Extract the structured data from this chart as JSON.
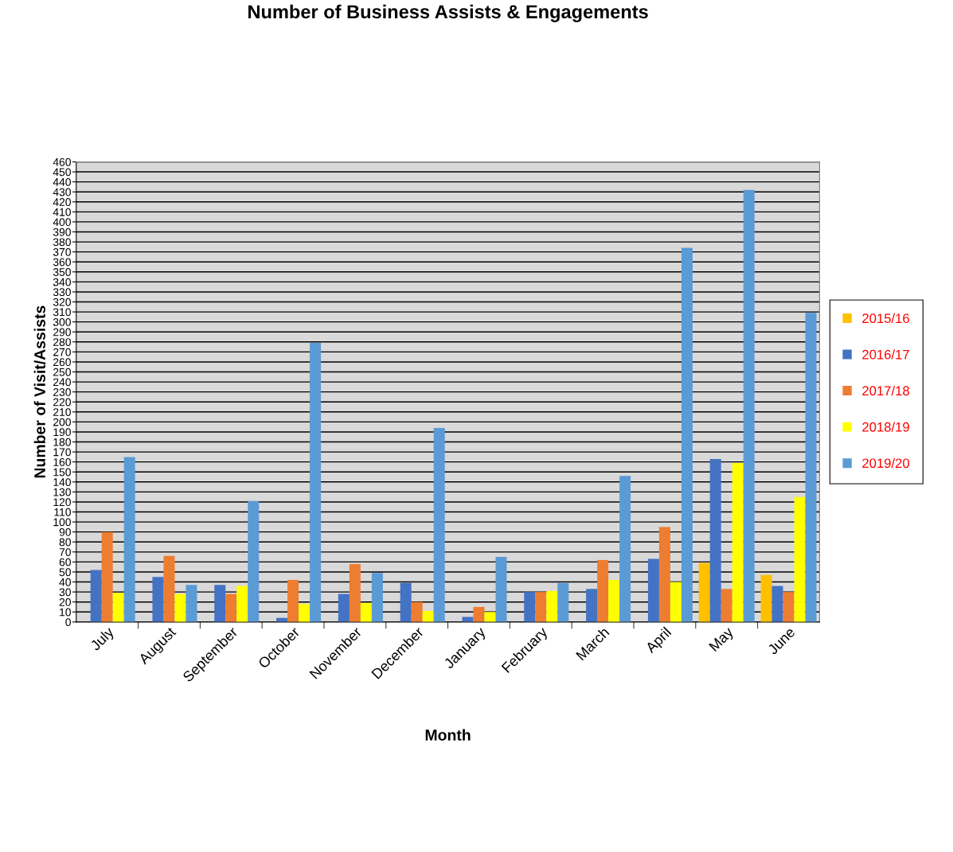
{
  "chart_data": {
    "type": "bar",
    "title": "Number of Business Assists & Engagements",
    "xlabel": "Month",
    "ylabel": "Number of Visit/Assists",
    "categories": [
      "July",
      "August",
      "September",
      "October",
      "November",
      "December",
      "January",
      "February",
      "March",
      "April",
      "May",
      "June"
    ],
    "series": [
      {
        "name": "2015/16",
        "color": "#ffc000",
        "values": [
          null,
          null,
          null,
          null,
          null,
          null,
          null,
          null,
          null,
          null,
          59,
          47
        ]
      },
      {
        "name": "2016/17",
        "color": "#4472c4",
        "values": [
          52,
          45,
          37,
          4,
          28,
          39,
          5,
          30,
          33,
          63,
          163,
          36
        ]
      },
      {
        "name": "2017/18",
        "color": "#ed7d31",
        "values": [
          90,
          66,
          28,
          42,
          58,
          20,
          15,
          30,
          62,
          95,
          33,
          30
        ]
      },
      {
        "name": "2018/19",
        "color": "#ffff00",
        "values": [
          29,
          28,
          36,
          18,
          19,
          11,
          10,
          31,
          42,
          40,
          159,
          125
        ]
      },
      {
        "name": "2019/20",
        "color": "#5b9bd5",
        "values": [
          165,
          37,
          121,
          279,
          49,
          194,
          65,
          39,
          146,
          374,
          432,
          309
        ]
      }
    ],
    "ylim": [
      0,
      460
    ],
    "yticks": [
      0,
      10,
      20,
      30,
      40,
      50,
      60,
      70,
      80,
      90,
      100,
      110,
      120,
      130,
      140,
      150,
      160,
      170,
      180,
      190,
      200,
      210,
      220,
      230,
      240,
      250,
      260,
      270,
      280,
      290,
      300,
      310,
      320,
      330,
      340,
      350,
      360,
      370,
      380,
      390,
      400,
      410,
      420,
      430,
      440,
      450,
      460
    ],
    "grid": "y",
    "legend": "right"
  }
}
